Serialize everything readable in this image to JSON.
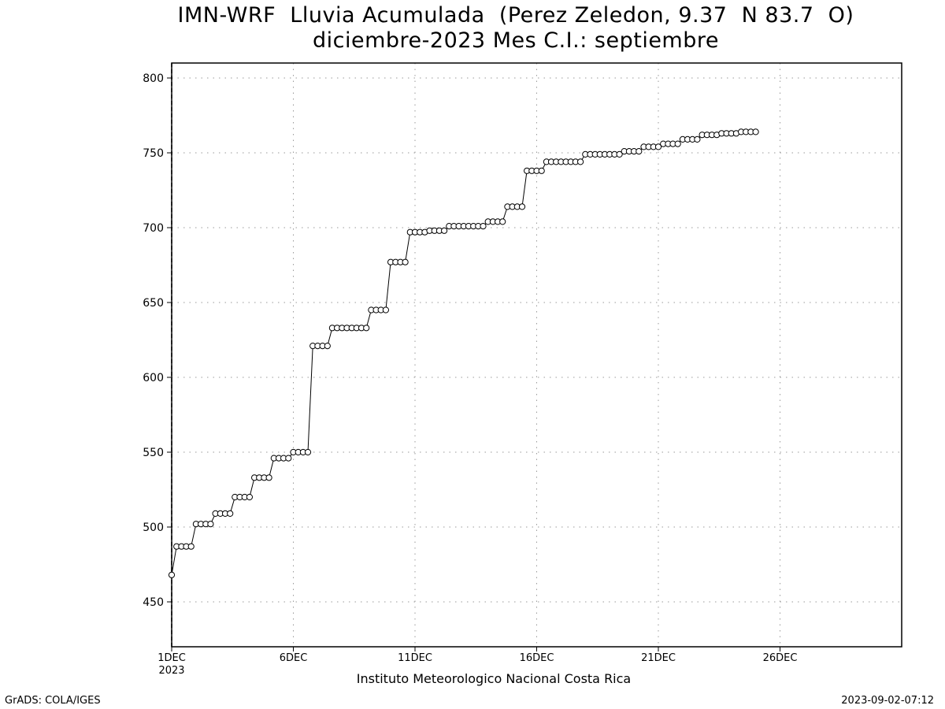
{
  "title_line1": "IMN-WRF  Lluvia Acumulada  (Perez Zeledon, 9.37  N 83.7  O)",
  "title_line2": "diciembre-2023 Mes C.I.: septiembre",
  "source_label": "Instituto Meteorologico Nacional Costa Rica",
  "credit_label": "GrADS: COLA/IGES",
  "timestamp_label": "2023-09-02-07:12",
  "chart_data": {
    "type": "line",
    "title": "IMN-WRF  Lluvia Acumulada  (Perez Zeledon, 9.37  N 83.7  O)",
    "subtitle": "diciembre-2023 Mes C.I.: septiembre",
    "x_unit": "days since 1DEC2023 00Z",
    "xlim": [
      0,
      30
    ],
    "ylim": [
      420,
      810
    ],
    "y_ticks": [
      450,
      500,
      550,
      600,
      650,
      700,
      750,
      800
    ],
    "x_ticks": [
      {
        "x": 0,
        "label": "1DEC",
        "sublabel": "2023"
      },
      {
        "x": 5,
        "label": "6DEC"
      },
      {
        "x": 10,
        "label": "11DEC"
      },
      {
        "x": 15,
        "label": "16DEC"
      },
      {
        "x": 20,
        "label": "21DEC"
      },
      {
        "x": 25,
        "label": "26DEC"
      }
    ],
    "grid": true,
    "marker": "open-circle",
    "step_days": 0.2,
    "values": [
      468,
      487,
      487,
      487,
      487,
      502,
      502,
      502,
      502,
      509,
      509,
      509,
      509,
      520,
      520,
      520,
      520,
      533,
      533,
      533,
      533,
      546,
      546,
      546,
      546,
      550,
      550,
      550,
      550,
      621,
      621,
      621,
      621,
      633,
      633,
      633,
      633,
      633,
      633,
      633,
      633,
      645,
      645,
      645,
      645,
      677,
      677,
      677,
      677,
      697,
      697,
      697,
      697,
      698,
      698,
      698,
      698,
      701,
      701,
      701,
      701,
      701,
      701,
      701,
      701,
      704,
      704,
      704,
      704,
      714,
      714,
      714,
      714,
      738,
      738,
      738,
      738,
      744,
      744,
      744,
      744,
      744,
      744,
      744,
      744,
      749,
      749,
      749,
      749,
      749,
      749,
      749,
      749,
      751,
      751,
      751,
      751,
      754,
      754,
      754,
      754,
      756,
      756,
      756,
      756,
      759,
      759,
      759,
      759,
      762,
      762,
      762,
      762,
      763,
      763,
      763,
      763,
      764,
      764,
      764,
      764
    ]
  }
}
